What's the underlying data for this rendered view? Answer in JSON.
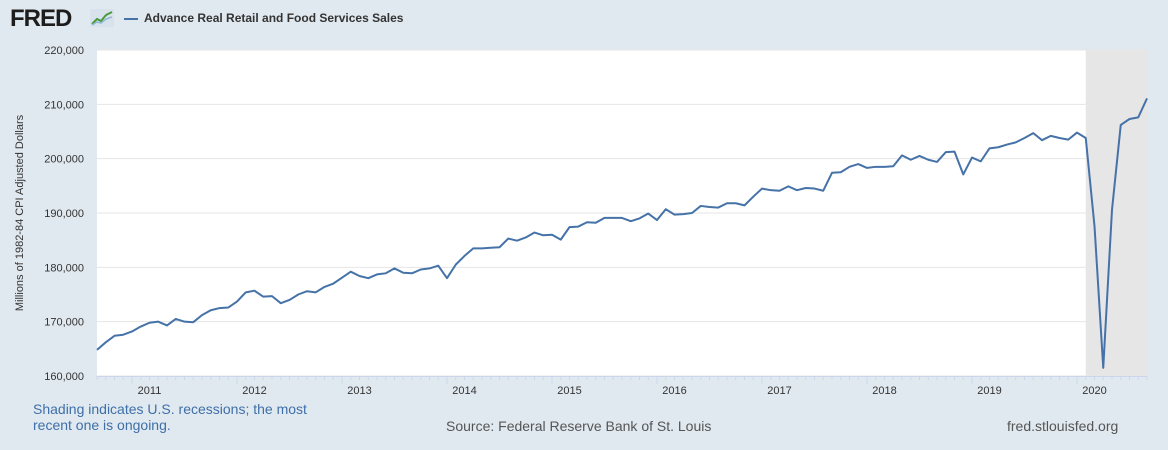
{
  "header": {
    "logo_text": "FRED",
    "logo_icon": "chart-line-icon",
    "legend_label": "Advance Real Retail and Food Services Sales"
  },
  "footer": {
    "recession_note": "Shading indicates U.S. recessions; the most recent one is ongoing.",
    "source": "Source: Federal Reserve Bank of St. Louis",
    "url": "fred.stlouisfed.org"
  },
  "colors": {
    "background": "#e1e9f0",
    "plot_background": "#ffffff",
    "series": "#4572a7",
    "recession_shade": "#e6e6e6",
    "note_text": "#3e6fa8"
  },
  "chart_data": {
    "type": "line",
    "title": "Advance Real Retail and Food Services Sales",
    "xlabel": "",
    "ylabel": "Millions of 1982-84 CPI Adjusted Dollars",
    "xlim": [
      "2010-09-01",
      "2020-09-01"
    ],
    "ylim": [
      160000,
      220000
    ],
    "yticks": [
      160000,
      170000,
      180000,
      190000,
      200000,
      210000,
      220000
    ],
    "ytick_labels": [
      "160,000",
      "170,000",
      "180,000",
      "190,000",
      "200,000",
      "210,000",
      "220,000"
    ],
    "xtick_labels": [
      "2011",
      "2012",
      "2013",
      "2014",
      "2015",
      "2016",
      "2017",
      "2018",
      "2019",
      "2020"
    ],
    "grid": true,
    "legend_position": "top-left",
    "recessions": [
      {
        "start": "2020-02-01",
        "end": "2020-09-01"
      }
    ],
    "series": [
      {
        "name": "Advance Real Retail and Food Services Sales",
        "start": "2010-09-01",
        "frequency": "monthly",
        "values": [
          164800,
          166200,
          167400,
          167600,
          168200,
          169100,
          169800,
          170000,
          169300,
          170500,
          170000,
          169900,
          171200,
          172100,
          172500,
          172600,
          173700,
          175400,
          175700,
          174600,
          174700,
          173400,
          174000,
          175000,
          175600,
          175400,
          176400,
          177000,
          178100,
          179200,
          178400,
          178000,
          178700,
          178900,
          179800,
          179000,
          178900,
          179600,
          179800,
          180300,
          178000,
          180500,
          182100,
          183500,
          183500,
          183600,
          183700,
          185300,
          184900,
          185500,
          186400,
          185900,
          186000,
          185100,
          187400,
          187500,
          188300,
          188200,
          189100,
          189100,
          189100,
          188500,
          189000,
          189900,
          188700,
          190700,
          189700,
          189800,
          190000,
          191300,
          191100,
          191000,
          191800,
          191800,
          191400,
          193000,
          194500,
          194200,
          194100,
          194900,
          194200,
          194600,
          194500,
          194100,
          197400,
          197500,
          198500,
          199000,
          198300,
          198500,
          198500,
          198600,
          200600,
          199800,
          200500,
          199800,
          199400,
          201200,
          201300,
          197100,
          200200,
          199500,
          201900,
          202100,
          202600,
          203000,
          203800,
          204700,
          203400,
          204200,
          203800,
          203500,
          204800,
          203800,
          187600,
          161500,
          190600,
          206200,
          207300,
          207600,
          211100
        ]
      }
    ]
  }
}
